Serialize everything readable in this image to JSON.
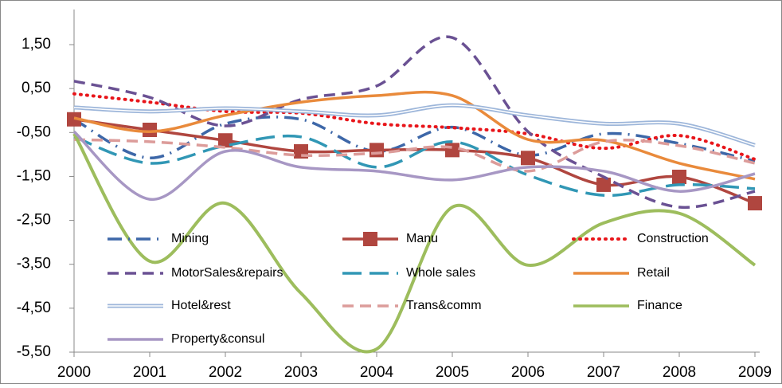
{
  "chart_data": {
    "type": "line",
    "categories": [
      "2000",
      "2001",
      "2002",
      "2003",
      "2004",
      "2005",
      "2006",
      "2007",
      "2008",
      "2009"
    ],
    "ylim": [
      -5.5,
      2.3
    ],
    "yticks": [
      {
        "value": 1.5,
        "label": "1,50"
      },
      {
        "value": 0.5,
        "label": "0,50"
      },
      {
        "value": -0.5,
        "label": "-0,50"
      },
      {
        "value": -1.5,
        "label": "-1,50"
      },
      {
        "value": -2.5,
        "label": "-2,50"
      },
      {
        "value": -3.5,
        "label": "-3,50"
      },
      {
        "value": -4.5,
        "label": "-4,50"
      },
      {
        "value": -5.5,
        "label": "-5,50"
      }
    ],
    "legend": "inside",
    "series": [
      {
        "name": "Mining",
        "color": "#3d67a8",
        "line_style": "dashdot",
        "values": [
          -0.2,
          -1.08,
          -0.3,
          -0.2,
          -0.93,
          -0.38,
          -1.02,
          -0.53,
          -0.75,
          -1.15
        ]
      },
      {
        "name": "Manu",
        "color": "#b0463f",
        "line_style": "solid-square",
        "values": [
          -0.2,
          -0.44,
          -0.68,
          -0.93,
          -0.9,
          -0.9,
          -1.08,
          -1.69,
          -1.51,
          -2.11
        ]
      },
      {
        "name": "Construction",
        "color": "#e8151a",
        "line_style": "dot",
        "values": [
          0.38,
          0.19,
          -0.02,
          -0.06,
          -0.3,
          -0.39,
          -0.53,
          -0.86,
          -0.57,
          -1.11
        ]
      },
      {
        "name": "MotorSales&repairs",
        "color": "#6a5193",
        "line_style": "dash",
        "values": [
          0.67,
          0.3,
          -0.35,
          0.25,
          0.56,
          1.66,
          -0.48,
          -1.51,
          -2.2,
          -1.84
        ]
      },
      {
        "name": "Whole sales",
        "color": "#3197b5",
        "line_style": "longdash",
        "values": [
          -0.6,
          -1.2,
          -0.8,
          -0.6,
          -1.29,
          -0.71,
          -1.47,
          -1.93,
          -1.69,
          -1.78
        ]
      },
      {
        "name": "Retail",
        "color": "#e98a3b",
        "line_style": "solid",
        "values": [
          -0.17,
          -0.48,
          -0.11,
          0.19,
          0.34,
          0.34,
          -0.66,
          -0.68,
          -1.2,
          -1.56
        ]
      },
      {
        "name": "Hotel&rest",
        "color": "#9db6da",
        "line_style": "double",
        "values": [
          0.07,
          -0.02,
          0.05,
          -0.02,
          -0.11,
          0.12,
          -0.11,
          -0.3,
          -0.3,
          -0.79
        ]
      },
      {
        "name": "Trans&comm",
        "color": "#dc9c9a",
        "line_style": "dash",
        "values": [
          -0.66,
          -0.71,
          -0.84,
          -1.02,
          -0.97,
          -0.84,
          -1.38,
          -0.71,
          -0.8,
          -1.2
        ]
      },
      {
        "name": "Finance",
        "color": "#9dbd5d",
        "line_style": "solid",
        "values": [
          -0.53,
          -3.43,
          -2.11,
          -4.16,
          -5.43,
          -2.2,
          -3.52,
          -2.56,
          -2.34,
          -3.52
        ]
      },
      {
        "name": "Property&consul",
        "color": "#a797c4",
        "line_style": "solid",
        "values": [
          -0.48,
          -2.02,
          -0.93,
          -1.29,
          -1.38,
          -1.58,
          -1.29,
          -1.38,
          -1.84,
          -1.44
        ]
      }
    ]
  }
}
